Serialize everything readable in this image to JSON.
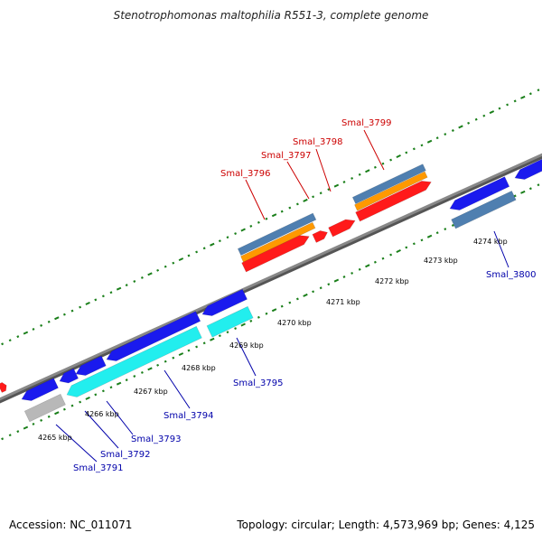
{
  "header": {
    "title": "Stenotrophomonas maltophilia R551-3, complete genome"
  },
  "footer": {
    "accession": "Accession: NC_011071",
    "summary": "Topology: circular; Length: 4,573,969 bp; Genes: 4,125"
  },
  "colors": {
    "axis": "#888888",
    "tick": "#1a7f1a",
    "red": "#ff1a1a",
    "orange": "#ff9900",
    "steelblue": "#4f7fb0",
    "blue": "#1a1aee",
    "cyan": "#22eeee",
    "grey": "#b8b8b8",
    "red_label": "#cc0000",
    "blue_label": "#0000aa"
  },
  "scale_labels": [
    "4265 kbp",
    "4266 kbp",
    "4267 kbp",
    "4268 kbp",
    "4269 kbp",
    "4270 kbp",
    "4271 kbp",
    "4272 kbp",
    "4273 kbp",
    "4274 kbp"
  ],
  "gene_labels": [
    {
      "name": "Smal_3791",
      "strand": "minus"
    },
    {
      "name": "Smal_3792",
      "strand": "minus"
    },
    {
      "name": "Smal_3793",
      "strand": "minus"
    },
    {
      "name": "Smal_3794",
      "strand": "minus"
    },
    {
      "name": "Smal_3795",
      "strand": "minus"
    },
    {
      "name": "Smal_3796",
      "strand": "plus"
    },
    {
      "name": "Smal_3797",
      "strand": "plus"
    },
    {
      "name": "Smal_3798",
      "strand": "plus"
    },
    {
      "name": "Smal_3799",
      "strand": "plus"
    },
    {
      "name": "Smal_3800",
      "strand": "minus"
    }
  ]
}
